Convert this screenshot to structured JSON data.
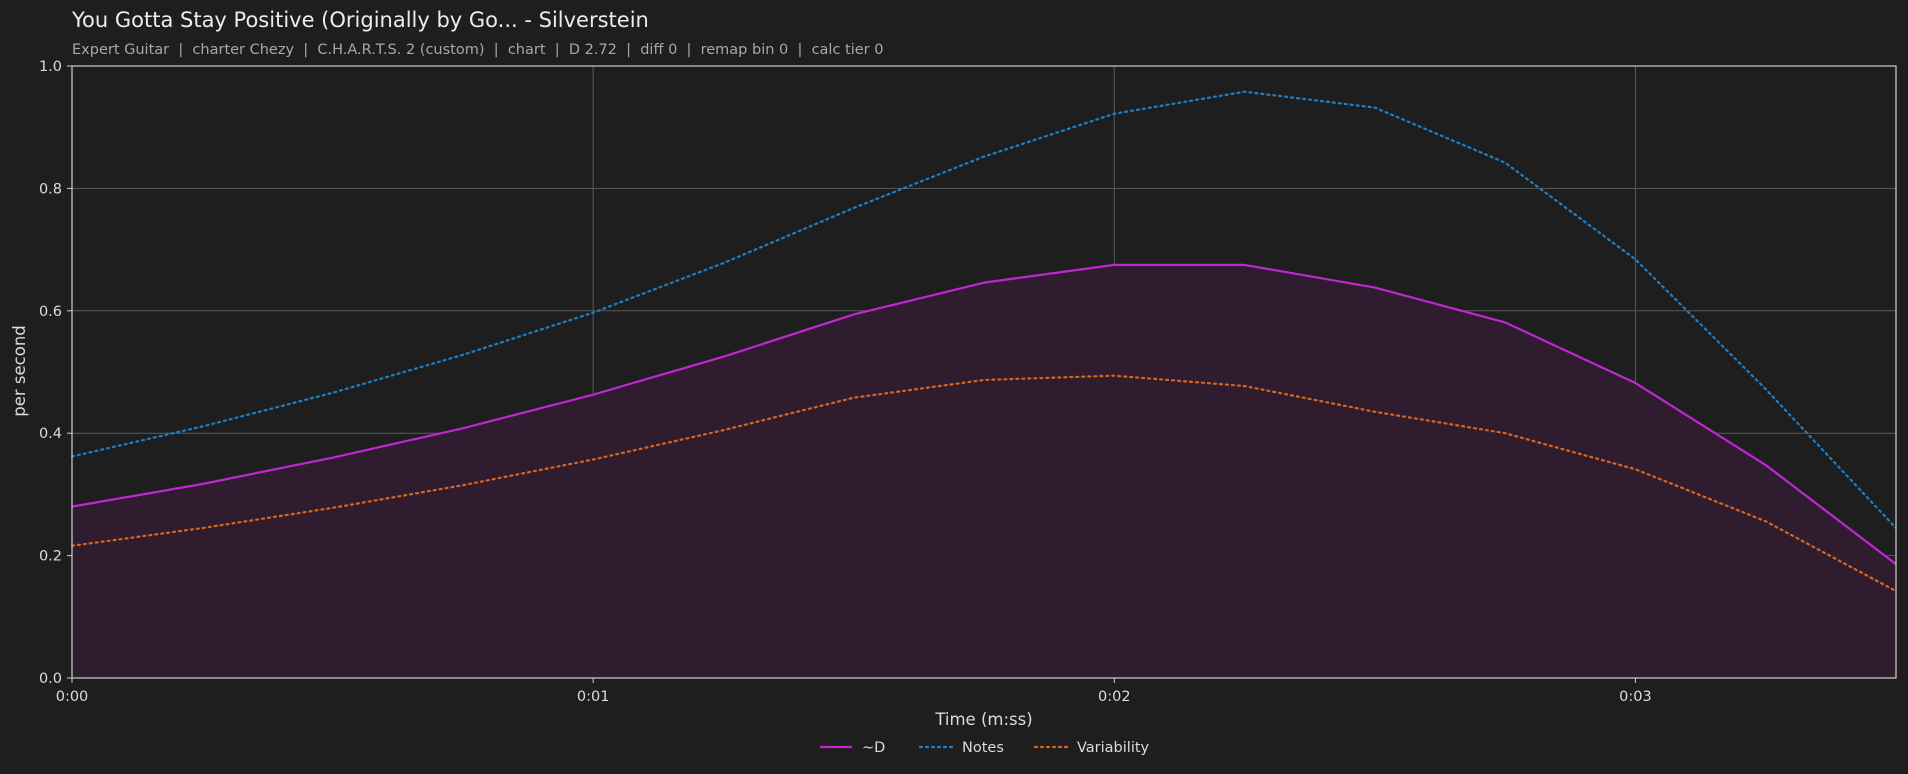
{
  "header": {
    "title": "You Gotta Stay Positive (Originally by Go... - Silverstein",
    "subtitle": "Expert Guitar  |  charter Chezy  |  C.H.A.R.T.S. 2 (custom)  |  chart  |  D 2.72  |  diff 0  |  remap bin 0  |  calc tier 0"
  },
  "chart_data": {
    "type": "line",
    "title": "You Gotta Stay Positive (Originally by Go... - Silverstein",
    "xlabel": "Time (m:ss)",
    "ylabel": "per second",
    "xlim": [
      0,
      3.5
    ],
    "ylim": [
      0,
      1.0
    ],
    "x_ticks": [
      {
        "value": 0,
        "label": "0:00"
      },
      {
        "value": 1,
        "label": "0:01"
      },
      {
        "value": 2,
        "label": "0:02"
      },
      {
        "value": 3,
        "label": "0:03"
      }
    ],
    "y_ticks": [
      {
        "value": 0.0,
        "label": "0.0"
      },
      {
        "value": 0.2,
        "label": "0.2"
      },
      {
        "value": 0.4,
        "label": "0.4"
      },
      {
        "value": 0.6,
        "label": "0.6"
      },
      {
        "value": 0.8,
        "label": "0.8"
      },
      {
        "value": 1.0,
        "label": "1.0"
      }
    ],
    "grid": true,
    "legend_position": "bottom-center",
    "x": [
      0,
      0.25,
      0.5,
      0.75,
      1.0,
      1.25,
      1.5,
      1.75,
      2.0,
      2.25,
      2.5,
      2.75,
      3.0,
      3.25,
      3.5
    ],
    "series": [
      {
        "name": "~D",
        "style": "solid",
        "color": "#c026d3",
        "fill": true,
        "fill_color": "#2f1c2f",
        "values": [
          0.28,
          0.317,
          0.36,
          0.408,
          0.463,
          0.525,
          0.594,
          0.646,
          0.675,
          0.675,
          0.638,
          0.581,
          0.482,
          0.348,
          0.186
        ]
      },
      {
        "name": "Notes",
        "style": "dotted",
        "color": "#1f7fc4",
        "fill": false,
        "values": [
          0.362,
          0.411,
          0.466,
          0.528,
          0.597,
          0.678,
          0.768,
          0.852,
          0.922,
          0.958,
          0.932,
          0.842,
          0.684,
          0.472,
          0.245
        ]
      },
      {
        "name": "Variability",
        "style": "dotted",
        "color": "#d8661e",
        "fill": false,
        "values": [
          0.216,
          0.245,
          0.278,
          0.315,
          0.357,
          0.405,
          0.458,
          0.487,
          0.494,
          0.477,
          0.435,
          0.4,
          0.341,
          0.256,
          0.142
        ]
      }
    ]
  }
}
